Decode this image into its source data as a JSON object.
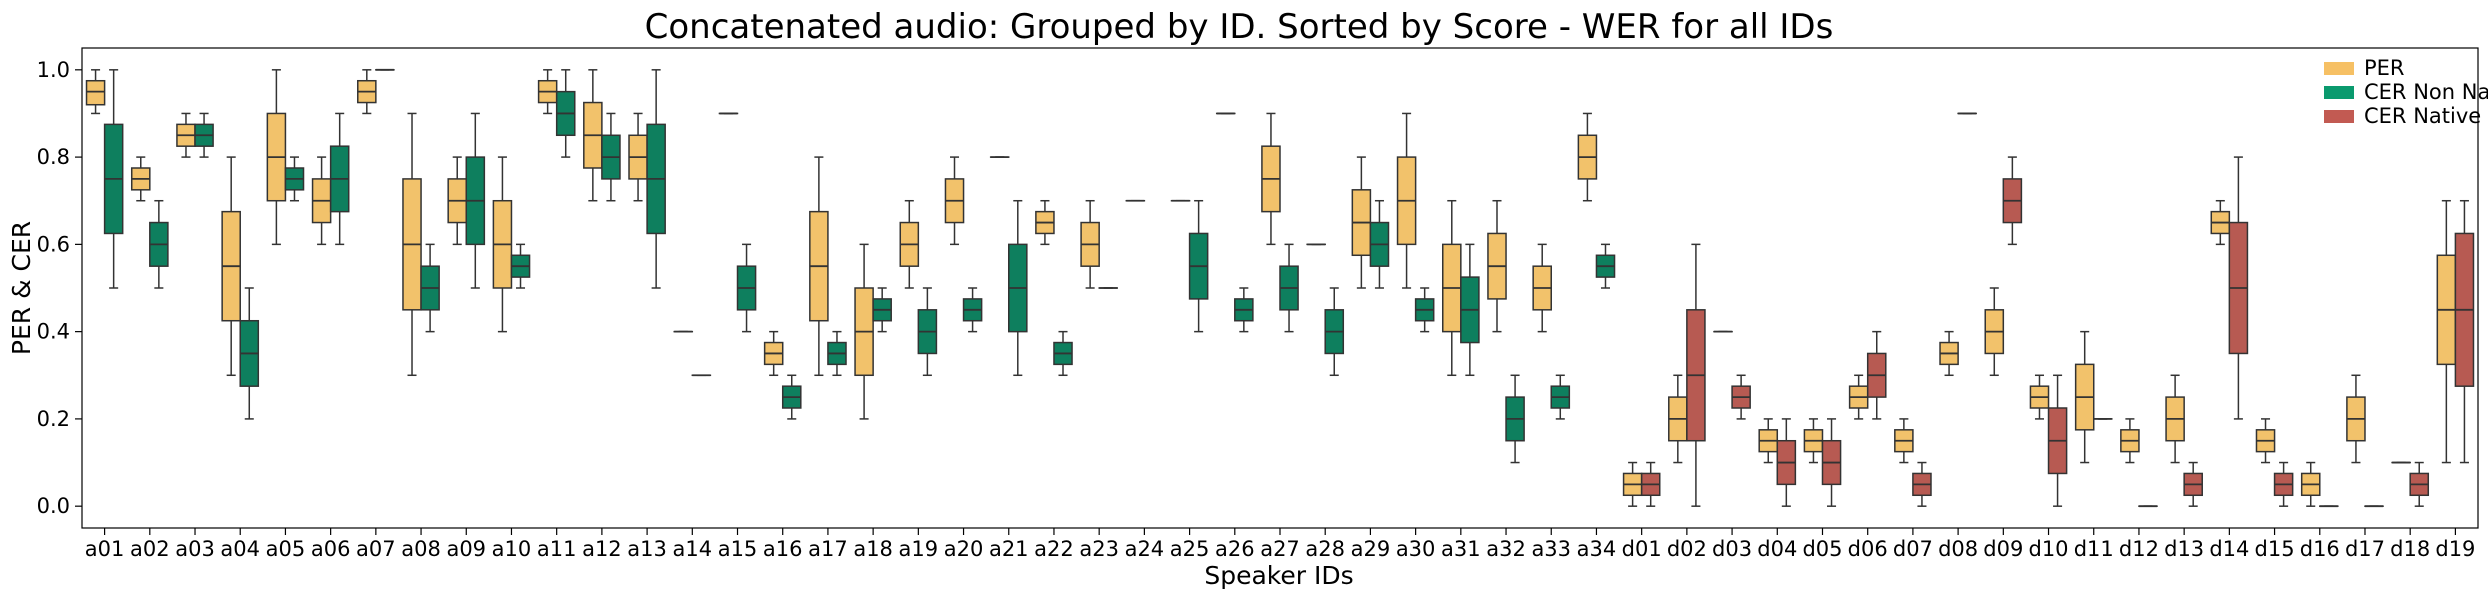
{
  "chart_data": {
    "type": "box",
    "title": "Concatenated audio: Grouped by ID. Sorted by Score - WER for all IDs",
    "xlabel": "Speaker IDs",
    "ylabel": "PER & CER",
    "ylim": [
      -0.05,
      1.05
    ],
    "yticks": [
      "0.0",
      "0.2",
      "0.4",
      "0.6",
      "0.8",
      "1.0"
    ],
    "grid": false,
    "legend_position": "top-right",
    "series": [
      {
        "name": "PER",
        "color": "#F2C26B"
      },
      {
        "name": "CER Non Native",
        "color": "#0E7F5E"
      },
      {
        "name": "CER Native",
        "color": "#B75A52"
      }
    ],
    "legend_colors": [
      "#F6C064",
      "#0A9A6E",
      "#C25A52"
    ],
    "categories": [
      "a01",
      "a02",
      "a03",
      "a04",
      "a05",
      "a06",
      "a07",
      "a08",
      "a09",
      "a10",
      "a11",
      "a12",
      "a13",
      "a14",
      "a15",
      "a16",
      "a17",
      "a18",
      "a19",
      "a20",
      "a21",
      "a22",
      "a23",
      "a24",
      "a25",
      "a26",
      "a27",
      "a28",
      "a29",
      "a30",
      "a31",
      "a32",
      "a33",
      "a34",
      "d01",
      "d02",
      "d03",
      "d04",
      "d05",
      "d06",
      "d07",
      "d08",
      "d09",
      "d10",
      "d11",
      "d12",
      "d13",
      "d14",
      "d15",
      "d16",
      "d17",
      "d18",
      "d19"
    ],
    "boxes": [
      {
        "cat": "a01",
        "s": 0,
        "min": 0.9,
        "q1": 0.92,
        "med": 0.95,
        "q3": 0.975,
        "max": 1.0
      },
      {
        "cat": "a01",
        "s": 1,
        "min": 0.5,
        "q1": 0.625,
        "med": 0.75,
        "q3": 0.875,
        "max": 1.0
      },
      {
        "cat": "a02",
        "s": 0,
        "min": 0.7,
        "q1": 0.725,
        "med": 0.75,
        "q3": 0.775,
        "max": 0.8
      },
      {
        "cat": "a02",
        "s": 1,
        "min": 0.5,
        "q1": 0.55,
        "med": 0.6,
        "q3": 0.65,
        "max": 0.7
      },
      {
        "cat": "a03",
        "s": 0,
        "min": 0.8,
        "q1": 0.825,
        "med": 0.85,
        "q3": 0.875,
        "max": 0.9
      },
      {
        "cat": "a03",
        "s": 1,
        "min": 0.8,
        "q1": 0.825,
        "med": 0.85,
        "q3": 0.875,
        "max": 0.9
      },
      {
        "cat": "a04",
        "s": 0,
        "min": 0.3,
        "q1": 0.425,
        "med": 0.55,
        "q3": 0.675,
        "max": 0.8
      },
      {
        "cat": "a04",
        "s": 1,
        "min": 0.2,
        "q1": 0.275,
        "med": 0.35,
        "q3": 0.425,
        "max": 0.5
      },
      {
        "cat": "a05",
        "s": 0,
        "min": 0.6,
        "q1": 0.7,
        "med": 0.8,
        "q3": 0.9,
        "max": 1.0
      },
      {
        "cat": "a05",
        "s": 1,
        "min": 0.7,
        "q1": 0.725,
        "med": 0.75,
        "q3": 0.775,
        "max": 0.8
      },
      {
        "cat": "a06",
        "s": 0,
        "min": 0.6,
        "q1": 0.65,
        "med": 0.7,
        "q3": 0.75,
        "max": 0.8
      },
      {
        "cat": "a06",
        "s": 1,
        "min": 0.6,
        "q1": 0.675,
        "med": 0.75,
        "q3": 0.825,
        "max": 0.9
      },
      {
        "cat": "a07",
        "s": 0,
        "min": 0.9,
        "q1": 0.925,
        "med": 0.95,
        "q3": 0.975,
        "max": 1.0
      },
      {
        "cat": "a07",
        "s": 1,
        "min": 1.0,
        "q1": 1.0,
        "med": 1.0,
        "q3": 1.0,
        "max": 1.0
      },
      {
        "cat": "a08",
        "s": 0,
        "min": 0.3,
        "q1": 0.45,
        "med": 0.6,
        "q3": 0.75,
        "max": 0.9
      },
      {
        "cat": "a08",
        "s": 1,
        "min": 0.4,
        "q1": 0.45,
        "med": 0.5,
        "q3": 0.55,
        "max": 0.6
      },
      {
        "cat": "a09",
        "s": 0,
        "min": 0.6,
        "q1": 0.65,
        "med": 0.7,
        "q3": 0.75,
        "max": 0.8
      },
      {
        "cat": "a09",
        "s": 1,
        "min": 0.5,
        "q1": 0.6,
        "med": 0.7,
        "q3": 0.8,
        "max": 0.9
      },
      {
        "cat": "a10",
        "s": 0,
        "min": 0.4,
        "q1": 0.5,
        "med": 0.6,
        "q3": 0.7,
        "max": 0.8
      },
      {
        "cat": "a10",
        "s": 1,
        "min": 0.5,
        "q1": 0.525,
        "med": 0.55,
        "q3": 0.575,
        "max": 0.6
      },
      {
        "cat": "a11",
        "s": 0,
        "min": 0.9,
        "q1": 0.925,
        "med": 0.95,
        "q3": 0.975,
        "max": 1.0
      },
      {
        "cat": "a11",
        "s": 1,
        "min": 0.8,
        "q1": 0.85,
        "med": 0.9,
        "q3": 0.95,
        "max": 1.0
      },
      {
        "cat": "a12",
        "s": 0,
        "min": 0.7,
        "q1": 0.775,
        "med": 0.85,
        "q3": 0.925,
        "max": 1.0
      },
      {
        "cat": "a12",
        "s": 1,
        "min": 0.7,
        "q1": 0.75,
        "med": 0.8,
        "q3": 0.85,
        "max": 0.9
      },
      {
        "cat": "a13",
        "s": 0,
        "min": 0.7,
        "q1": 0.75,
        "med": 0.8,
        "q3": 0.85,
        "max": 0.9
      },
      {
        "cat": "a13",
        "s": 1,
        "min": 0.5,
        "q1": 0.625,
        "med": 0.75,
        "q3": 0.875,
        "max": 1.0
      },
      {
        "cat": "a14",
        "s": 0,
        "min": 0.4,
        "q1": 0.4,
        "med": 0.4,
        "q3": 0.4,
        "max": 0.4
      },
      {
        "cat": "a14",
        "s": 1,
        "min": 0.3,
        "q1": 0.3,
        "med": 0.3,
        "q3": 0.3,
        "max": 0.3
      },
      {
        "cat": "a15",
        "s": 0,
        "min": 0.9,
        "q1": 0.9,
        "med": 0.9,
        "q3": 0.9,
        "max": 0.9
      },
      {
        "cat": "a15",
        "s": 1,
        "min": 0.4,
        "q1": 0.45,
        "med": 0.5,
        "q3": 0.55,
        "max": 0.6
      },
      {
        "cat": "a16",
        "s": 0,
        "min": 0.3,
        "q1": 0.325,
        "med": 0.35,
        "q3": 0.375,
        "max": 0.4
      },
      {
        "cat": "a16",
        "s": 1,
        "min": 0.2,
        "q1": 0.225,
        "med": 0.25,
        "q3": 0.275,
        "max": 0.3
      },
      {
        "cat": "a17",
        "s": 0,
        "min": 0.3,
        "q1": 0.425,
        "med": 0.55,
        "q3": 0.675,
        "max": 0.8
      },
      {
        "cat": "a17",
        "s": 1,
        "min": 0.3,
        "q1": 0.325,
        "med": 0.35,
        "q3": 0.375,
        "max": 0.4
      },
      {
        "cat": "a18",
        "s": 0,
        "min": 0.2,
        "q1": 0.3,
        "med": 0.4,
        "q3": 0.5,
        "max": 0.6
      },
      {
        "cat": "a18",
        "s": 1,
        "min": 0.4,
        "q1": 0.425,
        "med": 0.45,
        "q3": 0.475,
        "max": 0.5
      },
      {
        "cat": "a19",
        "s": 0,
        "min": 0.5,
        "q1": 0.55,
        "med": 0.6,
        "q3": 0.65,
        "max": 0.7
      },
      {
        "cat": "a19",
        "s": 1,
        "min": 0.3,
        "q1": 0.35,
        "med": 0.4,
        "q3": 0.45,
        "max": 0.5
      },
      {
        "cat": "a20",
        "s": 0,
        "min": 0.6,
        "q1": 0.65,
        "med": 0.7,
        "q3": 0.75,
        "max": 0.8
      },
      {
        "cat": "a20",
        "s": 1,
        "min": 0.4,
        "q1": 0.425,
        "med": 0.45,
        "q3": 0.475,
        "max": 0.5
      },
      {
        "cat": "a21",
        "s": 0,
        "min": 0.8,
        "q1": 0.8,
        "med": 0.8,
        "q3": 0.8,
        "max": 0.8
      },
      {
        "cat": "a21",
        "s": 1,
        "min": 0.3,
        "q1": 0.4,
        "med": 0.5,
        "q3": 0.6,
        "max": 0.7
      },
      {
        "cat": "a22",
        "s": 0,
        "min": 0.6,
        "q1": 0.625,
        "med": 0.65,
        "q3": 0.675,
        "max": 0.7
      },
      {
        "cat": "a22",
        "s": 1,
        "min": 0.3,
        "q1": 0.325,
        "med": 0.35,
        "q3": 0.375,
        "max": 0.4
      },
      {
        "cat": "a23",
        "s": 0,
        "min": 0.5,
        "q1": 0.55,
        "med": 0.6,
        "q3": 0.65,
        "max": 0.7
      },
      {
        "cat": "a23",
        "s": 1,
        "min": 0.5,
        "q1": 0.5,
        "med": 0.5,
        "q3": 0.5,
        "max": 0.5
      },
      {
        "cat": "a24",
        "s": 0,
        "min": 0.7,
        "q1": 0.7,
        "med": 0.7,
        "q3": 0.7,
        "max": 0.7
      },
      {
        "cat": "a25",
        "s": 0,
        "min": 0.7,
        "q1": 0.7,
        "med": 0.7,
        "q3": 0.7,
        "max": 0.7
      },
      {
        "cat": "a25",
        "s": 1,
        "min": 0.4,
        "q1": 0.475,
        "med": 0.55,
        "q3": 0.625,
        "max": 0.7
      },
      {
        "cat": "a26",
        "s": 0,
        "min": 0.9,
        "q1": 0.9,
        "med": 0.9,
        "q3": 0.9,
        "max": 0.9
      },
      {
        "cat": "a26",
        "s": 1,
        "min": 0.4,
        "q1": 0.425,
        "med": 0.45,
        "q3": 0.475,
        "max": 0.5
      },
      {
        "cat": "a27",
        "s": 0,
        "min": 0.6,
        "q1": 0.675,
        "med": 0.75,
        "q3": 0.825,
        "max": 0.9
      },
      {
        "cat": "a27",
        "s": 1,
        "min": 0.4,
        "q1": 0.45,
        "med": 0.5,
        "q3": 0.55,
        "max": 0.6
      },
      {
        "cat": "a28",
        "s": 0,
        "min": 0.6,
        "q1": 0.6,
        "med": 0.6,
        "q3": 0.6,
        "max": 0.6
      },
      {
        "cat": "a28",
        "s": 1,
        "min": 0.3,
        "q1": 0.35,
        "med": 0.4,
        "q3": 0.45,
        "max": 0.5
      },
      {
        "cat": "a29",
        "s": 0,
        "min": 0.5,
        "q1": 0.575,
        "med": 0.65,
        "q3": 0.725,
        "max": 0.8
      },
      {
        "cat": "a29",
        "s": 1,
        "min": 0.5,
        "q1": 0.55,
        "med": 0.6,
        "q3": 0.65,
        "max": 0.7
      },
      {
        "cat": "a30",
        "s": 0,
        "min": 0.5,
        "q1": 0.6,
        "med": 0.7,
        "q3": 0.8,
        "max": 0.9
      },
      {
        "cat": "a30",
        "s": 1,
        "min": 0.4,
        "q1": 0.425,
        "med": 0.45,
        "q3": 0.475,
        "max": 0.5
      },
      {
        "cat": "a31",
        "s": 0,
        "min": 0.3,
        "q1": 0.4,
        "med": 0.5,
        "q3": 0.6,
        "max": 0.7
      },
      {
        "cat": "a31",
        "s": 1,
        "min": 0.3,
        "q1": 0.375,
        "med": 0.45,
        "q3": 0.525,
        "max": 0.6
      },
      {
        "cat": "a32",
        "s": 0,
        "min": 0.4,
        "q1": 0.475,
        "med": 0.55,
        "q3": 0.625,
        "max": 0.7
      },
      {
        "cat": "a32",
        "s": 1,
        "min": 0.1,
        "q1": 0.15,
        "med": 0.2,
        "q3": 0.25,
        "max": 0.3
      },
      {
        "cat": "a33",
        "s": 0,
        "min": 0.4,
        "q1": 0.45,
        "med": 0.5,
        "q3": 0.55,
        "max": 0.6
      },
      {
        "cat": "a33",
        "s": 1,
        "min": 0.2,
        "q1": 0.225,
        "med": 0.25,
        "q3": 0.275,
        "max": 0.3
      },
      {
        "cat": "a34",
        "s": 0,
        "min": 0.7,
        "q1": 0.75,
        "med": 0.8,
        "q3": 0.85,
        "max": 0.9
      },
      {
        "cat": "a34",
        "s": 1,
        "min": 0.5,
        "q1": 0.525,
        "med": 0.55,
        "q3": 0.575,
        "max": 0.6
      },
      {
        "cat": "d01",
        "s": 0,
        "min": 0.0,
        "q1": 0.025,
        "med": 0.05,
        "q3": 0.075,
        "max": 0.1
      },
      {
        "cat": "d01",
        "s": 2,
        "min": 0.0,
        "q1": 0.025,
        "med": 0.05,
        "q3": 0.075,
        "max": 0.1
      },
      {
        "cat": "d02",
        "s": 0,
        "min": 0.1,
        "q1": 0.15,
        "med": 0.2,
        "q3": 0.25,
        "max": 0.3
      },
      {
        "cat": "d02",
        "s": 2,
        "min": 0.0,
        "q1": 0.15,
        "med": 0.3,
        "q3": 0.45,
        "max": 0.6
      },
      {
        "cat": "d03",
        "s": 0,
        "min": 0.4,
        "q1": 0.4,
        "med": 0.4,
        "q3": 0.4,
        "max": 0.4
      },
      {
        "cat": "d03",
        "s": 2,
        "min": 0.2,
        "q1": 0.225,
        "med": 0.25,
        "q3": 0.275,
        "max": 0.3
      },
      {
        "cat": "d04",
        "s": 0,
        "min": 0.1,
        "q1": 0.125,
        "med": 0.15,
        "q3": 0.175,
        "max": 0.2
      },
      {
        "cat": "d04",
        "s": 2,
        "min": 0.0,
        "q1": 0.05,
        "med": 0.1,
        "q3": 0.15,
        "max": 0.2
      },
      {
        "cat": "d05",
        "s": 0,
        "min": 0.1,
        "q1": 0.125,
        "med": 0.15,
        "q3": 0.175,
        "max": 0.2
      },
      {
        "cat": "d05",
        "s": 2,
        "min": 0.0,
        "q1": 0.05,
        "med": 0.1,
        "q3": 0.15,
        "max": 0.2
      },
      {
        "cat": "d06",
        "s": 0,
        "min": 0.2,
        "q1": 0.225,
        "med": 0.25,
        "q3": 0.275,
        "max": 0.3
      },
      {
        "cat": "d06",
        "s": 2,
        "min": 0.2,
        "q1": 0.25,
        "med": 0.3,
        "q3": 0.35,
        "max": 0.4
      },
      {
        "cat": "d07",
        "s": 0,
        "min": 0.1,
        "q1": 0.125,
        "med": 0.15,
        "q3": 0.175,
        "max": 0.2
      },
      {
        "cat": "d07",
        "s": 2,
        "min": 0.0,
        "q1": 0.025,
        "med": 0.05,
        "q3": 0.075,
        "max": 0.1
      },
      {
        "cat": "d08",
        "s": 0,
        "min": 0.3,
        "q1": 0.325,
        "med": 0.35,
        "q3": 0.375,
        "max": 0.4
      },
      {
        "cat": "d08",
        "s": 2,
        "min": 0.9,
        "q1": 0.9,
        "med": 0.9,
        "q3": 0.9,
        "max": 0.9
      },
      {
        "cat": "d09",
        "s": 0,
        "min": 0.3,
        "q1": 0.35,
        "med": 0.4,
        "q3": 0.45,
        "max": 0.5
      },
      {
        "cat": "d09",
        "s": 2,
        "min": 0.6,
        "q1": 0.65,
        "med": 0.7,
        "q3": 0.75,
        "max": 0.8
      },
      {
        "cat": "d10",
        "s": 0,
        "min": 0.2,
        "q1": 0.225,
        "med": 0.25,
        "q3": 0.275,
        "max": 0.3
      },
      {
        "cat": "d10",
        "s": 2,
        "min": 0.0,
        "q1": 0.075,
        "med": 0.15,
        "q3": 0.225,
        "max": 0.3
      },
      {
        "cat": "d11",
        "s": 0,
        "min": 0.1,
        "q1": 0.175,
        "med": 0.25,
        "q3": 0.325,
        "max": 0.4
      },
      {
        "cat": "d11",
        "s": 2,
        "min": 0.2,
        "q1": 0.2,
        "med": 0.2,
        "q3": 0.2,
        "max": 0.2
      },
      {
        "cat": "d12",
        "s": 0,
        "min": 0.1,
        "q1": 0.125,
        "med": 0.15,
        "q3": 0.175,
        "max": 0.2
      },
      {
        "cat": "d12",
        "s": 2,
        "min": 0.0,
        "q1": 0.0,
        "med": 0.0,
        "q3": 0.0,
        "max": 0.0
      },
      {
        "cat": "d13",
        "s": 0,
        "min": 0.1,
        "q1": 0.15,
        "med": 0.2,
        "q3": 0.25,
        "max": 0.3
      },
      {
        "cat": "d13",
        "s": 2,
        "min": 0.0,
        "q1": 0.025,
        "med": 0.05,
        "q3": 0.075,
        "max": 0.1
      },
      {
        "cat": "d14",
        "s": 0,
        "min": 0.6,
        "q1": 0.625,
        "med": 0.65,
        "q3": 0.675,
        "max": 0.7
      },
      {
        "cat": "d14",
        "s": 2,
        "min": 0.2,
        "q1": 0.35,
        "med": 0.5,
        "q3": 0.65,
        "max": 0.8
      },
      {
        "cat": "d15",
        "s": 0,
        "min": 0.1,
        "q1": 0.125,
        "med": 0.15,
        "q3": 0.175,
        "max": 0.2
      },
      {
        "cat": "d15",
        "s": 2,
        "min": 0.0,
        "q1": 0.025,
        "med": 0.05,
        "q3": 0.075,
        "max": 0.1
      },
      {
        "cat": "d16",
        "s": 0,
        "min": 0.0,
        "q1": 0.025,
        "med": 0.05,
        "q3": 0.075,
        "max": 0.1
      },
      {
        "cat": "d16",
        "s": 2,
        "min": 0.0,
        "q1": 0.0,
        "med": 0.0,
        "q3": 0.0,
        "max": 0.0
      },
      {
        "cat": "d17",
        "s": 0,
        "min": 0.1,
        "q1": 0.15,
        "med": 0.2,
        "q3": 0.25,
        "max": 0.3
      },
      {
        "cat": "d17",
        "s": 2,
        "min": 0.0,
        "q1": 0.0,
        "med": 0.0,
        "q3": 0.0,
        "max": 0.0
      },
      {
        "cat": "d18",
        "s": 0,
        "min": 0.1,
        "q1": 0.1,
        "med": 0.1,
        "q3": 0.1,
        "max": 0.1
      },
      {
        "cat": "d18",
        "s": 2,
        "min": 0.0,
        "q1": 0.025,
        "med": 0.05,
        "q3": 0.075,
        "max": 0.1
      },
      {
        "cat": "d19",
        "s": 0,
        "min": 0.1,
        "q1": 0.325,
        "med": 0.45,
        "q3": 0.575,
        "max": 0.7
      },
      {
        "cat": "d19",
        "s": 2,
        "min": 0.1,
        "q1": 0.275,
        "med": 0.45,
        "q3": 0.625,
        "max": 0.7
      }
    ]
  }
}
